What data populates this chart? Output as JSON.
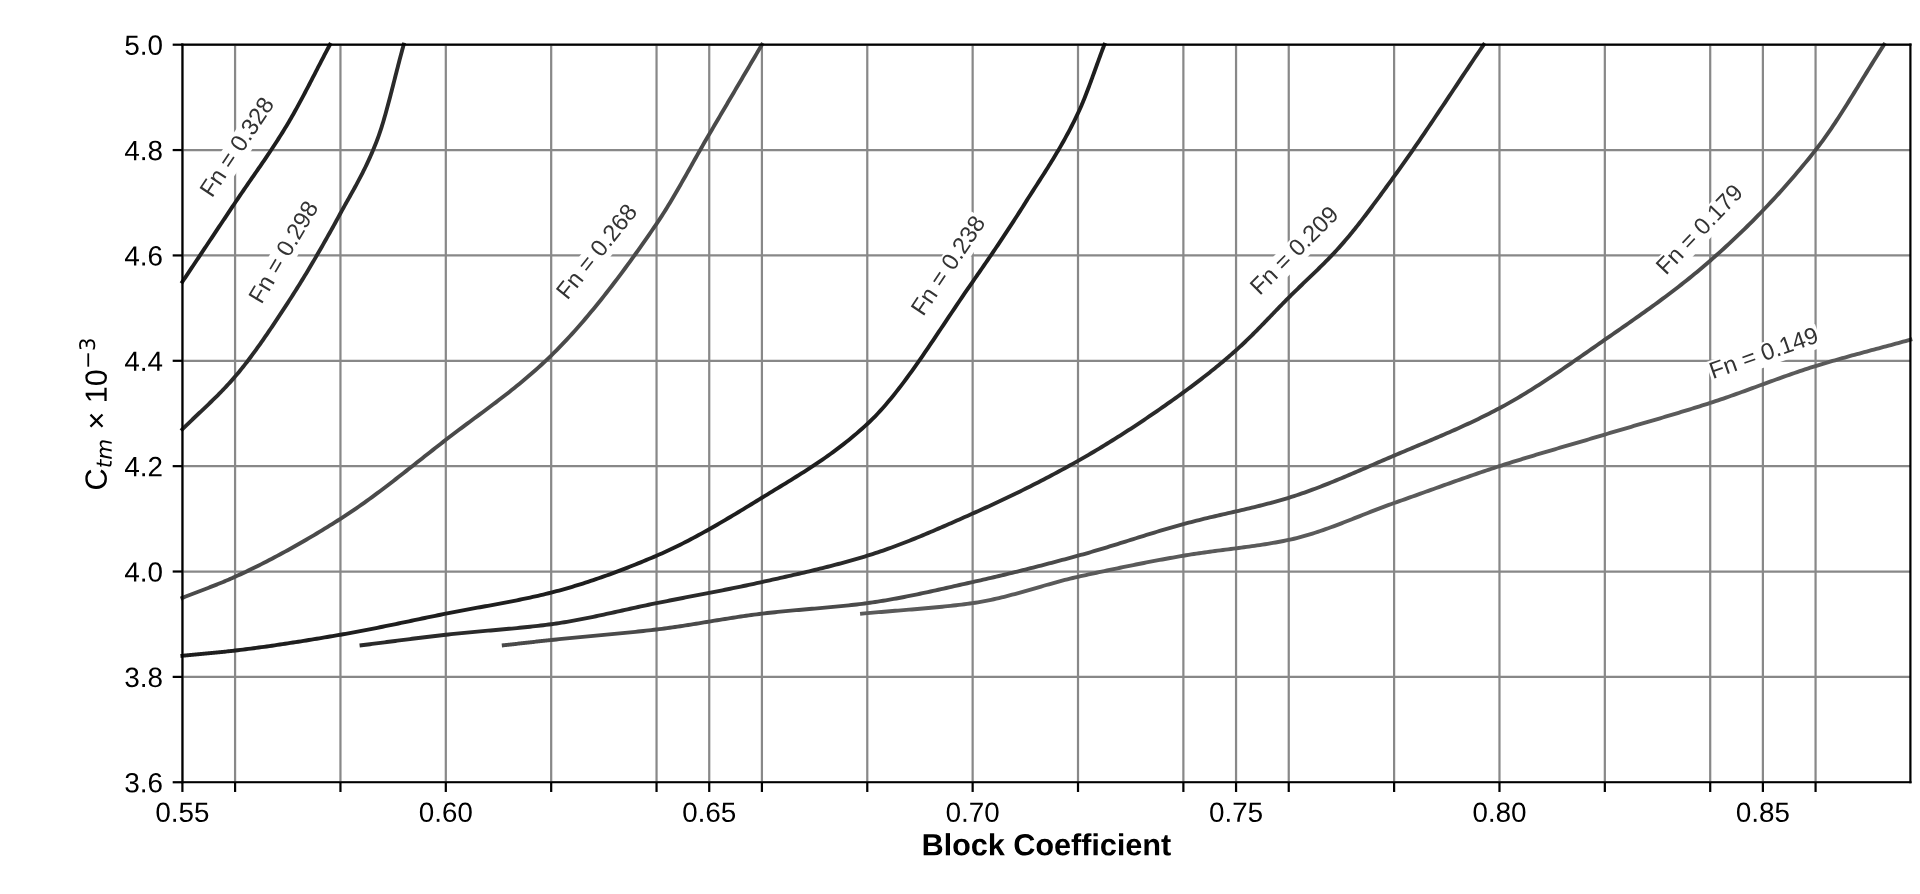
{
  "chart_data": {
    "type": "line",
    "xlabel": "Block Coefficient",
    "ylabel": "C$_{tm}$ × 10$^{−3}$",
    "xlim": [
      0.55,
      0.878
    ],
    "ylim": [
      3.6,
      5.0
    ],
    "xticks": [
      0.55,
      {
        "value": 0.56,
        "label": null
      },
      {
        "value": 0.58,
        "label": null
      },
      {
        "value": 0.6,
        "label": "0.60"
      },
      {
        "value": 0.62,
        "label": null
      },
      {
        "value": 0.64,
        "label": null
      },
      0.65,
      {
        "value": 0.66,
        "label": null
      },
      {
        "value": 0.68,
        "label": null
      },
      {
        "value": 0.7,
        "label": "0.70"
      },
      {
        "value": 0.72,
        "label": null
      },
      {
        "value": 0.74,
        "label": null
      },
      0.75,
      {
        "value": 0.76,
        "label": null
      },
      {
        "value": 0.78,
        "label": null
      },
      {
        "value": 0.8,
        "label": "0.80"
      },
      {
        "value": 0.82,
        "label": null
      },
      {
        "value": 0.84,
        "label": null
      },
      0.85,
      {
        "value": 0.86,
        "label": null
      }
    ],
    "yticks": [
      3.6,
      3.8,
      {
        "value": 4.0,
        "label": "4.0"
      },
      4.2,
      4.4,
      4.6,
      4.8,
      {
        "value": 5.0,
        "label": "5.0"
      }
    ],
    "grid": true,
    "legend": false,
    "marker": "none",
    "line_style": "solid",
    "series": [
      {
        "name": "Fn = 0.328",
        "color": "#1e1e1e",
        "x": [
          0.55,
          0.56,
          0.57,
          0.578
        ],
        "values": [
          4.55,
          4.7,
          4.85,
          5.0
        ]
      },
      {
        "name": "Fn = 0.298",
        "color": "#2a2a2a",
        "x": [
          0.55,
          0.56,
          0.57,
          0.58,
          0.587,
          0.592
        ],
        "values": [
          4.27,
          4.37,
          4.51,
          4.68,
          4.82,
          5.0
        ]
      },
      {
        "name": "Fn = 0.268",
        "color": "#4a4a4a",
        "x": [
          0.55,
          0.56,
          0.58,
          0.6,
          0.62,
          0.64,
          0.65,
          0.66
        ],
        "values": [
          3.95,
          3.99,
          4.1,
          4.25,
          4.41,
          4.66,
          4.83,
          5.0
        ]
      },
      {
        "name": "Fn = 0.238",
        "color": "#1e1e1e",
        "x": [
          0.55,
          0.56,
          0.58,
          0.6,
          0.62,
          0.64,
          0.66,
          0.68,
          0.7,
          0.71,
          0.72,
          0.725
        ],
        "values": [
          3.84,
          3.85,
          3.88,
          3.92,
          3.96,
          4.03,
          4.14,
          4.28,
          4.55,
          4.7,
          4.87,
          5.0
        ]
      },
      {
        "name": "Fn = 0.209",
        "color": "#2a2a2a",
        "x": [
          0.584,
          0.6,
          0.62,
          0.64,
          0.66,
          0.68,
          0.7,
          0.72,
          0.74,
          0.75,
          0.76,
          0.77,
          0.78,
          0.797
        ],
        "values": [
          3.86,
          3.88,
          3.9,
          3.94,
          3.98,
          4.03,
          4.11,
          4.21,
          4.34,
          4.42,
          4.52,
          4.62,
          4.75,
          5.0
        ]
      },
      {
        "name": "Fn = 0.179",
        "color": "#4a4a4a",
        "x": [
          0.611,
          0.62,
          0.64,
          0.66,
          0.68,
          0.7,
          0.72,
          0.74,
          0.76,
          0.78,
          0.8,
          0.82,
          0.84,
          0.86,
          0.873
        ],
        "values": [
          3.86,
          3.87,
          3.89,
          3.92,
          3.94,
          3.98,
          4.03,
          4.09,
          4.14,
          4.22,
          4.31,
          4.44,
          4.59,
          4.8,
          5.0
        ]
      },
      {
        "name": "Fn = 0.149",
        "color": "#5a5a5a",
        "x": [
          0.679,
          0.7,
          0.72,
          0.74,
          0.76,
          0.78,
          0.8,
          0.82,
          0.84,
          0.86,
          0.878
        ],
        "values": [
          3.92,
          3.94,
          3.99,
          4.03,
          4.06,
          4.13,
          4.2,
          4.26,
          4.32,
          4.39,
          4.44
        ]
      }
    ]
  }
}
